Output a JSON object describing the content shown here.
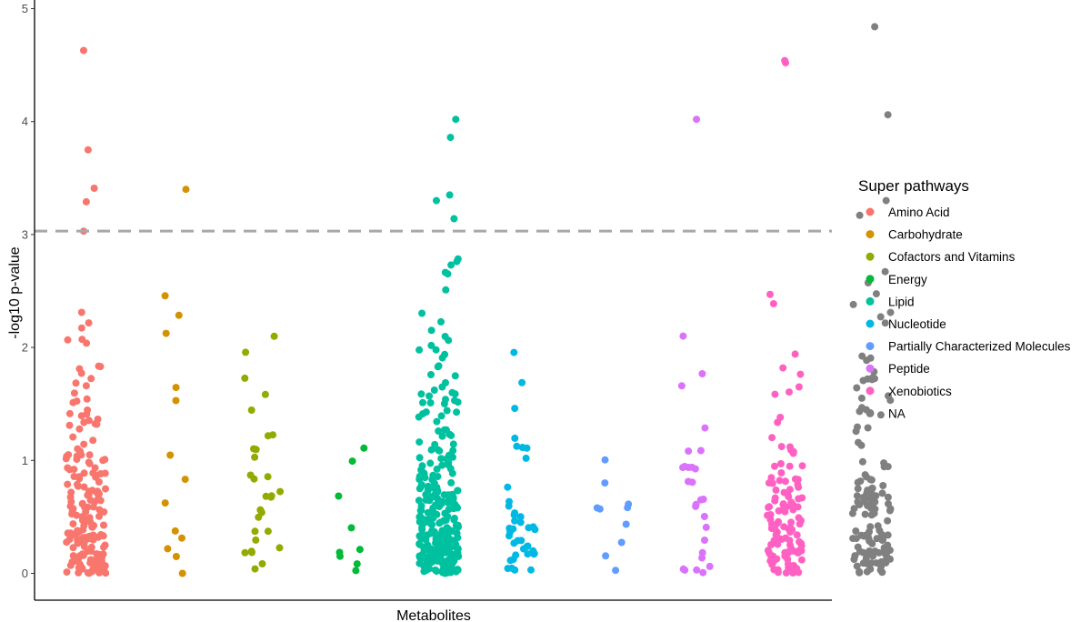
{
  "chart_data": {
    "type": "scatter",
    "xlabel": "Metabolites",
    "ylabel": "-log10 p-value",
    "ylim": [
      -0.22,
      5.05
    ],
    "yticks": [
      "0",
      "1",
      "2",
      "3",
      "4",
      "5"
    ],
    "grid": false,
    "threshold": 3.03,
    "legend": {
      "title": "Super pathways",
      "placement": "right"
    },
    "categories": [
      "Amino Acid",
      "Carbohydrate",
      "Cofactors and Vitamins",
      "Energy",
      "Lipid",
      "Nucleotide",
      "Partially Characterized Molecules",
      "Peptide",
      "Xenobiotics",
      "NA"
    ],
    "series": [
      {
        "name": "Amino Acid",
        "color": "#F8766D",
        "point_count": 190,
        "x_range": [
          0.8,
          1.25
        ],
        "highlighted": [
          [
            1.0,
            4.63
          ],
          [
            1.05,
            3.75
          ],
          [
            1.12,
            3.41
          ],
          [
            1.03,
            3.29
          ],
          [
            1.0,
            3.03
          ]
        ],
        "other_max": 2.48
      },
      {
        "name": "Carbohydrate",
        "color": "#D39200",
        "point_count": 14,
        "x_range": [
          1.92,
          2.2
        ],
        "highlighted": [
          [
            2.16,
            3.4
          ]
        ],
        "other_max": 2.62
      },
      {
        "name": "Cofactors and Vitamins",
        "color": "#93AA00",
        "point_count": 30,
        "x_range": [
          2.82,
          3.25
        ],
        "highlighted": [],
        "other_max": 2.29
      },
      {
        "name": "Energy",
        "color": "#00BA38",
        "point_count": 9,
        "x_range": [
          3.88,
          4.18
        ],
        "highlighted": [],
        "other_max": 1.27
      },
      {
        "name": "Lipid",
        "color": "#00C19F",
        "point_count": 290,
        "x_range": [
          4.8,
          5.25
        ],
        "highlighted": [
          [
            5.22,
            4.02
          ],
          [
            5.16,
            3.86
          ],
          [
            5.15,
            3.35
          ],
          [
            5.0,
            3.3
          ],
          [
            5.2,
            3.14
          ]
        ],
        "other_max": 2.8
      },
      {
        "name": "Nucleotide",
        "color": "#00B9E3",
        "point_count": 40,
        "x_range": [
          5.8,
          6.12
        ],
        "highlighted": [],
        "other_max": 2.34
      },
      {
        "name": "Partially Characterized Molecules",
        "color": "#619CFF",
        "point_count": 10,
        "x_range": [
          6.8,
          7.18
        ],
        "highlighted": [],
        "other_max": 1.45
      },
      {
        "name": "Peptide",
        "color": "#DB72FB",
        "point_count": 28,
        "x_range": [
          7.78,
          8.1
        ],
        "highlighted": [
          [
            7.95,
            4.02
          ]
        ],
        "other_max": 2.68
      },
      {
        "name": "Xenobiotics",
        "color": "#FF61C3",
        "point_count": 120,
        "x_range": [
          8.75,
          9.15
        ],
        "highlighted": [
          [
            8.95,
            4.54
          ],
          [
            8.96,
            4.52
          ]
        ],
        "other_max": 2.62
      },
      {
        "name": "NA",
        "color": "#808080",
        "point_count": 130,
        "x_range": [
          9.72,
          10.15
        ],
        "highlighted": [
          [
            9.97,
            4.84
          ],
          [
            10.12,
            4.06
          ],
          [
            10.1,
            3.3
          ],
          [
            9.8,
            3.17
          ]
        ],
        "other_max": 2.71
      }
    ]
  }
}
